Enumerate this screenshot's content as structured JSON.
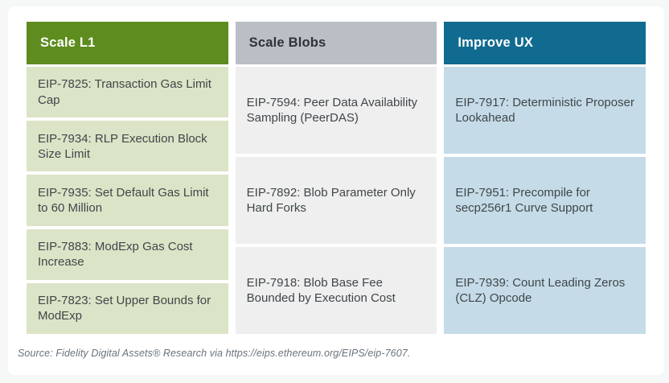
{
  "chart_data": {
    "type": "table",
    "columns": [
      {
        "header": "Scale L1",
        "header_bg": "#5e8c1e",
        "header_text_color": "#ffffff",
        "cell_bg": "#dce4c7",
        "items": [
          "EIP-7825: Transaction Gas Limit Cap",
          "EIP-7934: RLP Execution Block Size Limit",
          "EIP-7935: Set Default Gas Limit to 60 Million",
          "EIP-7883: ModExp Gas Cost Increase",
          "EIP-7823: Set Upper Bounds for ModExp"
        ]
      },
      {
        "header": "Scale Blobs",
        "header_bg": "#b9bfc4",
        "header_text_color": "#2e3338",
        "cell_bg": "#efefef",
        "items": [
          "EIP-7594: Peer Data Availability Sampling (PeerDAS)",
          "EIP-7892: Blob Parameter Only Hard Forks",
          "EIP-7918: Blob Base Fee Bounded by Execution Cost"
        ]
      },
      {
        "header": "Improve UX",
        "header_bg": "#116a8f",
        "header_text_color": "#ffffff",
        "cell_bg": "#c5dce8",
        "items": [
          "EIP-7917: Deterministic Proposer Lookahead",
          "EIP-7951: Precompile for secp256r1 Curve Support",
          "EIP-7939: Count Leading Zeros (CLZ) Opcode"
        ]
      }
    ],
    "source": "Source: Fidelity Digital Assets® Research via https://eips.ethereum.org/EIPS/eip-7607.",
    "layout": {
      "legend": "none",
      "grid": "off"
    }
  },
  "colors": {
    "page_background": "#f6f7f7",
    "card_background": "#ffffff",
    "cell_text": "#40464a",
    "footer_text": "#6a737b"
  }
}
